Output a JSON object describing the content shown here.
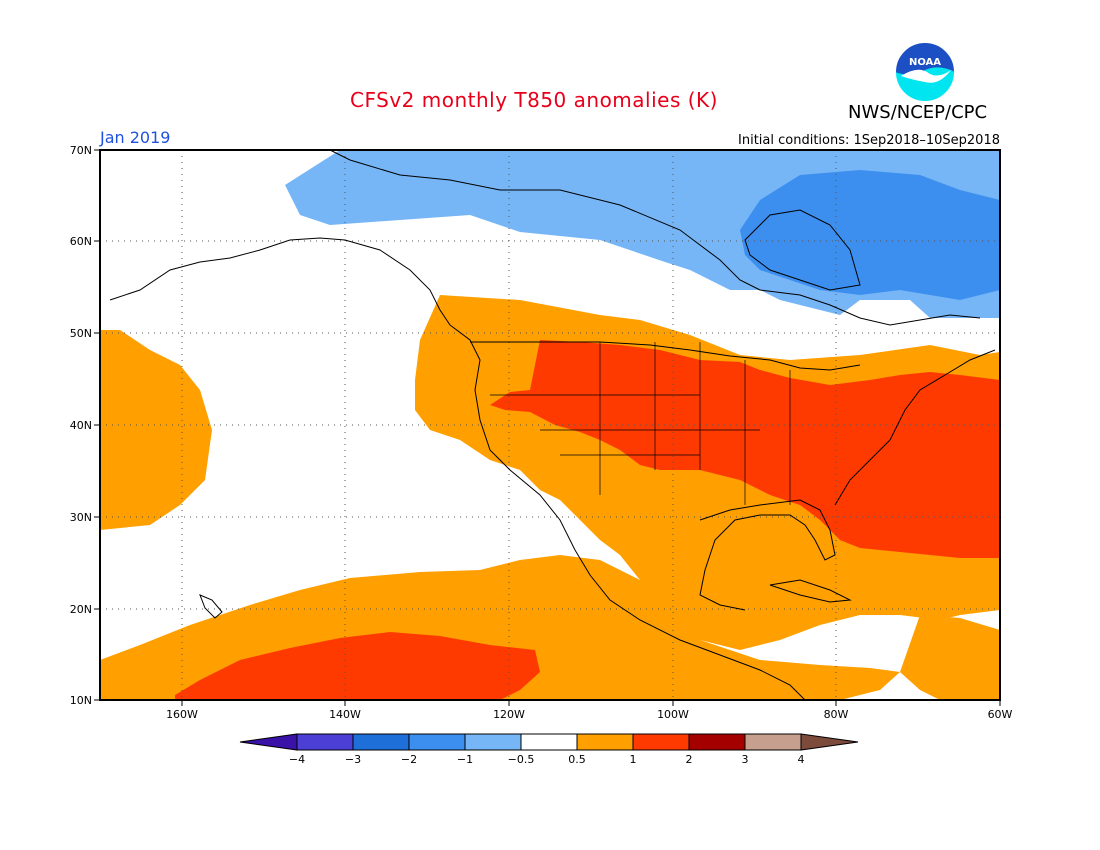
{
  "title": "CFSv2 monthly T850 anomalies (K)",
  "agency": "NWS/NCEP/CPC",
  "month": "Jan 2019",
  "initial_conditions": "Initial conditions: 1Sep2018–10Sep2018",
  "logo": {
    "text": "NOAA",
    "colors": {
      "top": "#1d4fc4",
      "bottom": "#00e5f0",
      "bird": "#ffffff"
    }
  },
  "lat_labels": [
    "70N",
    "60N",
    "50N",
    "40N",
    "30N",
    "20N",
    "10N"
  ],
  "lon_labels": [
    "160W",
    "140W",
    "120W",
    "100W",
    "80W",
    "60W"
  ],
  "colorbar": {
    "labels": [
      "−4",
      "−3",
      "−2",
      "−1",
      "−0.5",
      "0.5",
      "1",
      "2",
      "3",
      "4"
    ],
    "colors": [
      "#3a12a8",
      "#4b3fd6",
      "#1f6fd8",
      "#3d8fef",
      "#76b6f6",
      "#ffffff",
      "#ff9f00",
      "#ff3a00",
      "#a50000",
      "#c79f8e",
      "#7c4b3c"
    ]
  },
  "regions": [
    {
      "name": "strong-warm-anomaly",
      "color": "#ff3a00"
    },
    {
      "name": "warm-anomaly",
      "color": "#ff9f00"
    },
    {
      "name": "cool-anomaly",
      "color": "#76b6f6"
    },
    {
      "name": "strong-cool-anomaly",
      "color": "#3d8fef"
    }
  ]
}
